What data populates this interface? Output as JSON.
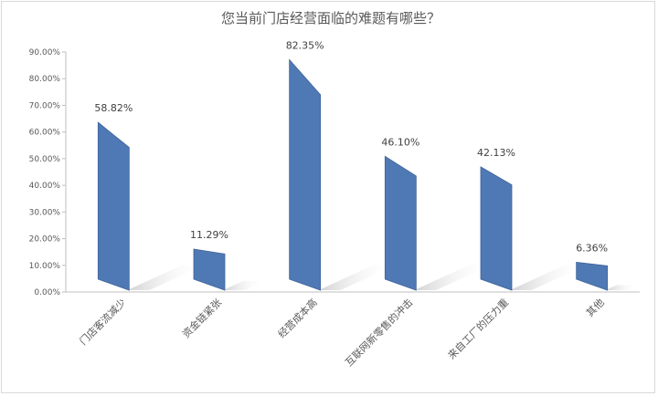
{
  "chart_data": {
    "type": "bar",
    "title": "您当前门店经营面临的难题有哪些？",
    "categories": [
      "门店客流减少",
      "资金链紧张",
      "经营成本高",
      "互联网新零售的冲击",
      "来自工厂的压力重",
      "其他"
    ],
    "values": [
      58.82,
      11.29,
      82.35,
      46.1,
      42.13,
      6.36
    ],
    "value_labels": [
      "58.82%",
      "11.29%",
      "82.35%",
      "46.10%",
      "42.13%",
      "6.36%"
    ],
    "y_ticks": [
      "0.00%",
      "10.00%",
      "20.00%",
      "30.00%",
      "40.00%",
      "50.00%",
      "60.00%",
      "70.00%",
      "80.00%",
      "90.00%"
    ],
    "ylim": [
      0,
      90
    ],
    "xlabel": "",
    "ylabel": "",
    "grid": false,
    "legend": "none",
    "colors": {
      "bar": "#4f79b4",
      "bar_side": "#3e6399",
      "shadow": "#d6d6d6",
      "axis": "#bfbfbf"
    }
  }
}
